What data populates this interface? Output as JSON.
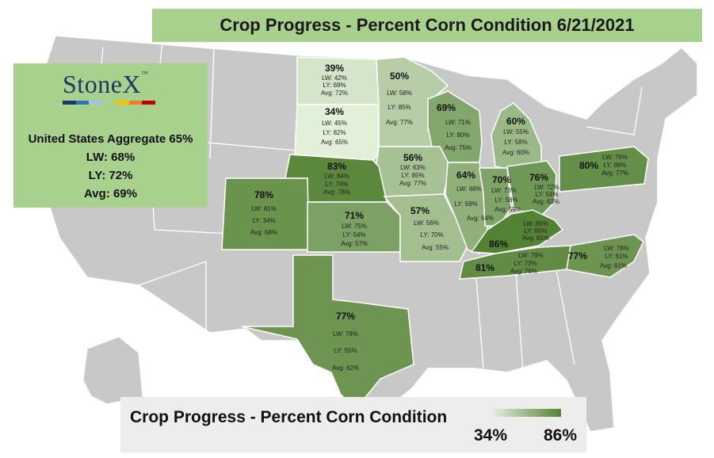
{
  "title": "Crop Progress - Percent Corn Condition 6/21/2021",
  "logo": {
    "text": "StoneX",
    "bar_colors": [
      "#1f3864",
      "#2e75b6",
      "#9dc3e6",
      "#a9d18e",
      "#ffc000",
      "#ed7d31",
      "#c00000"
    ]
  },
  "aggregate": {
    "headline": "United States Aggregate 65%",
    "lw": "LW: 68%",
    "ly": "LY: 72%",
    "avg": "Avg: 69%"
  },
  "legend": {
    "title": "Crop Progress - Percent Corn Condition",
    "min": "34%",
    "max": "86%",
    "min_color": "#e2efd9",
    "max_color": "#548235"
  },
  "colors": {
    "no_data": "#c8c8c8",
    "background": "#ffffff"
  },
  "states": [
    {
      "id": "north-dakota",
      "pct": "39%",
      "lw": "LW: 42%",
      "ly": "LY: 69%",
      "avg": "Avg: 72%",
      "value": 39
    },
    {
      "id": "south-dakota",
      "pct": "34%",
      "lw": "LW: 45%",
      "ly": "LY: 82%",
      "avg": "Avg: 65%",
      "value": 34
    },
    {
      "id": "minnesota",
      "pct": "50%",
      "lw": "LW: 58%",
      "ly": "LY: 85%",
      "avg": "Avg: 77%",
      "value": 50
    },
    {
      "id": "wisconsin",
      "pct": "69%",
      "lw": "LW: 71%",
      "ly": "LY: 80%",
      "avg": "Avg: 75%",
      "value": 69
    },
    {
      "id": "michigan",
      "pct": "60%",
      "lw": "LW: 55%",
      "ly": "LY: 58%",
      "avg": "Avg: 60%",
      "value": 60
    },
    {
      "id": "iowa",
      "pct": "56%",
      "lw": "LW: 63%",
      "ly": "LY: 85%",
      "avg": "Avg: 77%",
      "value": 56
    },
    {
      "id": "nebraska",
      "pct": "83%",
      "lw": "LW: 84%",
      "ly": "LY: 74%",
      "avg": "Avg: 78%",
      "value": 83
    },
    {
      "id": "colorado",
      "pct": "78%",
      "lw": "LW: 81%",
      "ly": "LY: 34%",
      "avg": "Avg: 68%",
      "value": 78
    },
    {
      "id": "kansas",
      "pct": "71%",
      "lw": "LW: 75%",
      "ly": "LY: 54%",
      "avg": "Avg: 57%",
      "value": 71
    },
    {
      "id": "missouri",
      "pct": "57%",
      "lw": "LW: 56%",
      "ly": "LY: 70%",
      "avg": "Avg: 55%",
      "value": 57
    },
    {
      "id": "illinois",
      "pct": "64%",
      "lw": "LW: 68%",
      "ly": "LY: 59%",
      "avg": "Avg: 64%",
      "value": 64
    },
    {
      "id": "indiana",
      "pct": "70%",
      "lw": "LW: 73%",
      "ly": "LY: 58%",
      "avg": "Avg: 59%",
      "value": 70
    },
    {
      "id": "ohio",
      "pct": "76%",
      "lw": "LW: 72%",
      "ly": "LY: 56%",
      "avg": "Avg: 61%",
      "value": 76
    },
    {
      "id": "pennsylvania",
      "pct": "80%",
      "lw": "LW: 76%",
      "ly": "LY: 88%",
      "avg": "Avg: 77%",
      "value": 80
    },
    {
      "id": "kentucky",
      "pct": "86%",
      "lw": "LW: 85%",
      "ly": "LY: 85%",
      "avg": "Avg: 81%",
      "value": 86
    },
    {
      "id": "tennessee",
      "pct": "81%",
      "lw": "LW: 79%",
      "ly": "LY: 73%",
      "avg": "Avg: 76%",
      "value": 81
    },
    {
      "id": "north-carolina",
      "pct": "77%",
      "lw": "LW: 78%",
      "ly": "LY: 61%",
      "avg": "Avg: 61%",
      "value": 77
    },
    {
      "id": "texas",
      "pct": "77%",
      "lw": "LW: 78%",
      "ly": "LY: 55%",
      "avg": "Avg: 62%",
      "value": 77
    }
  ]
}
